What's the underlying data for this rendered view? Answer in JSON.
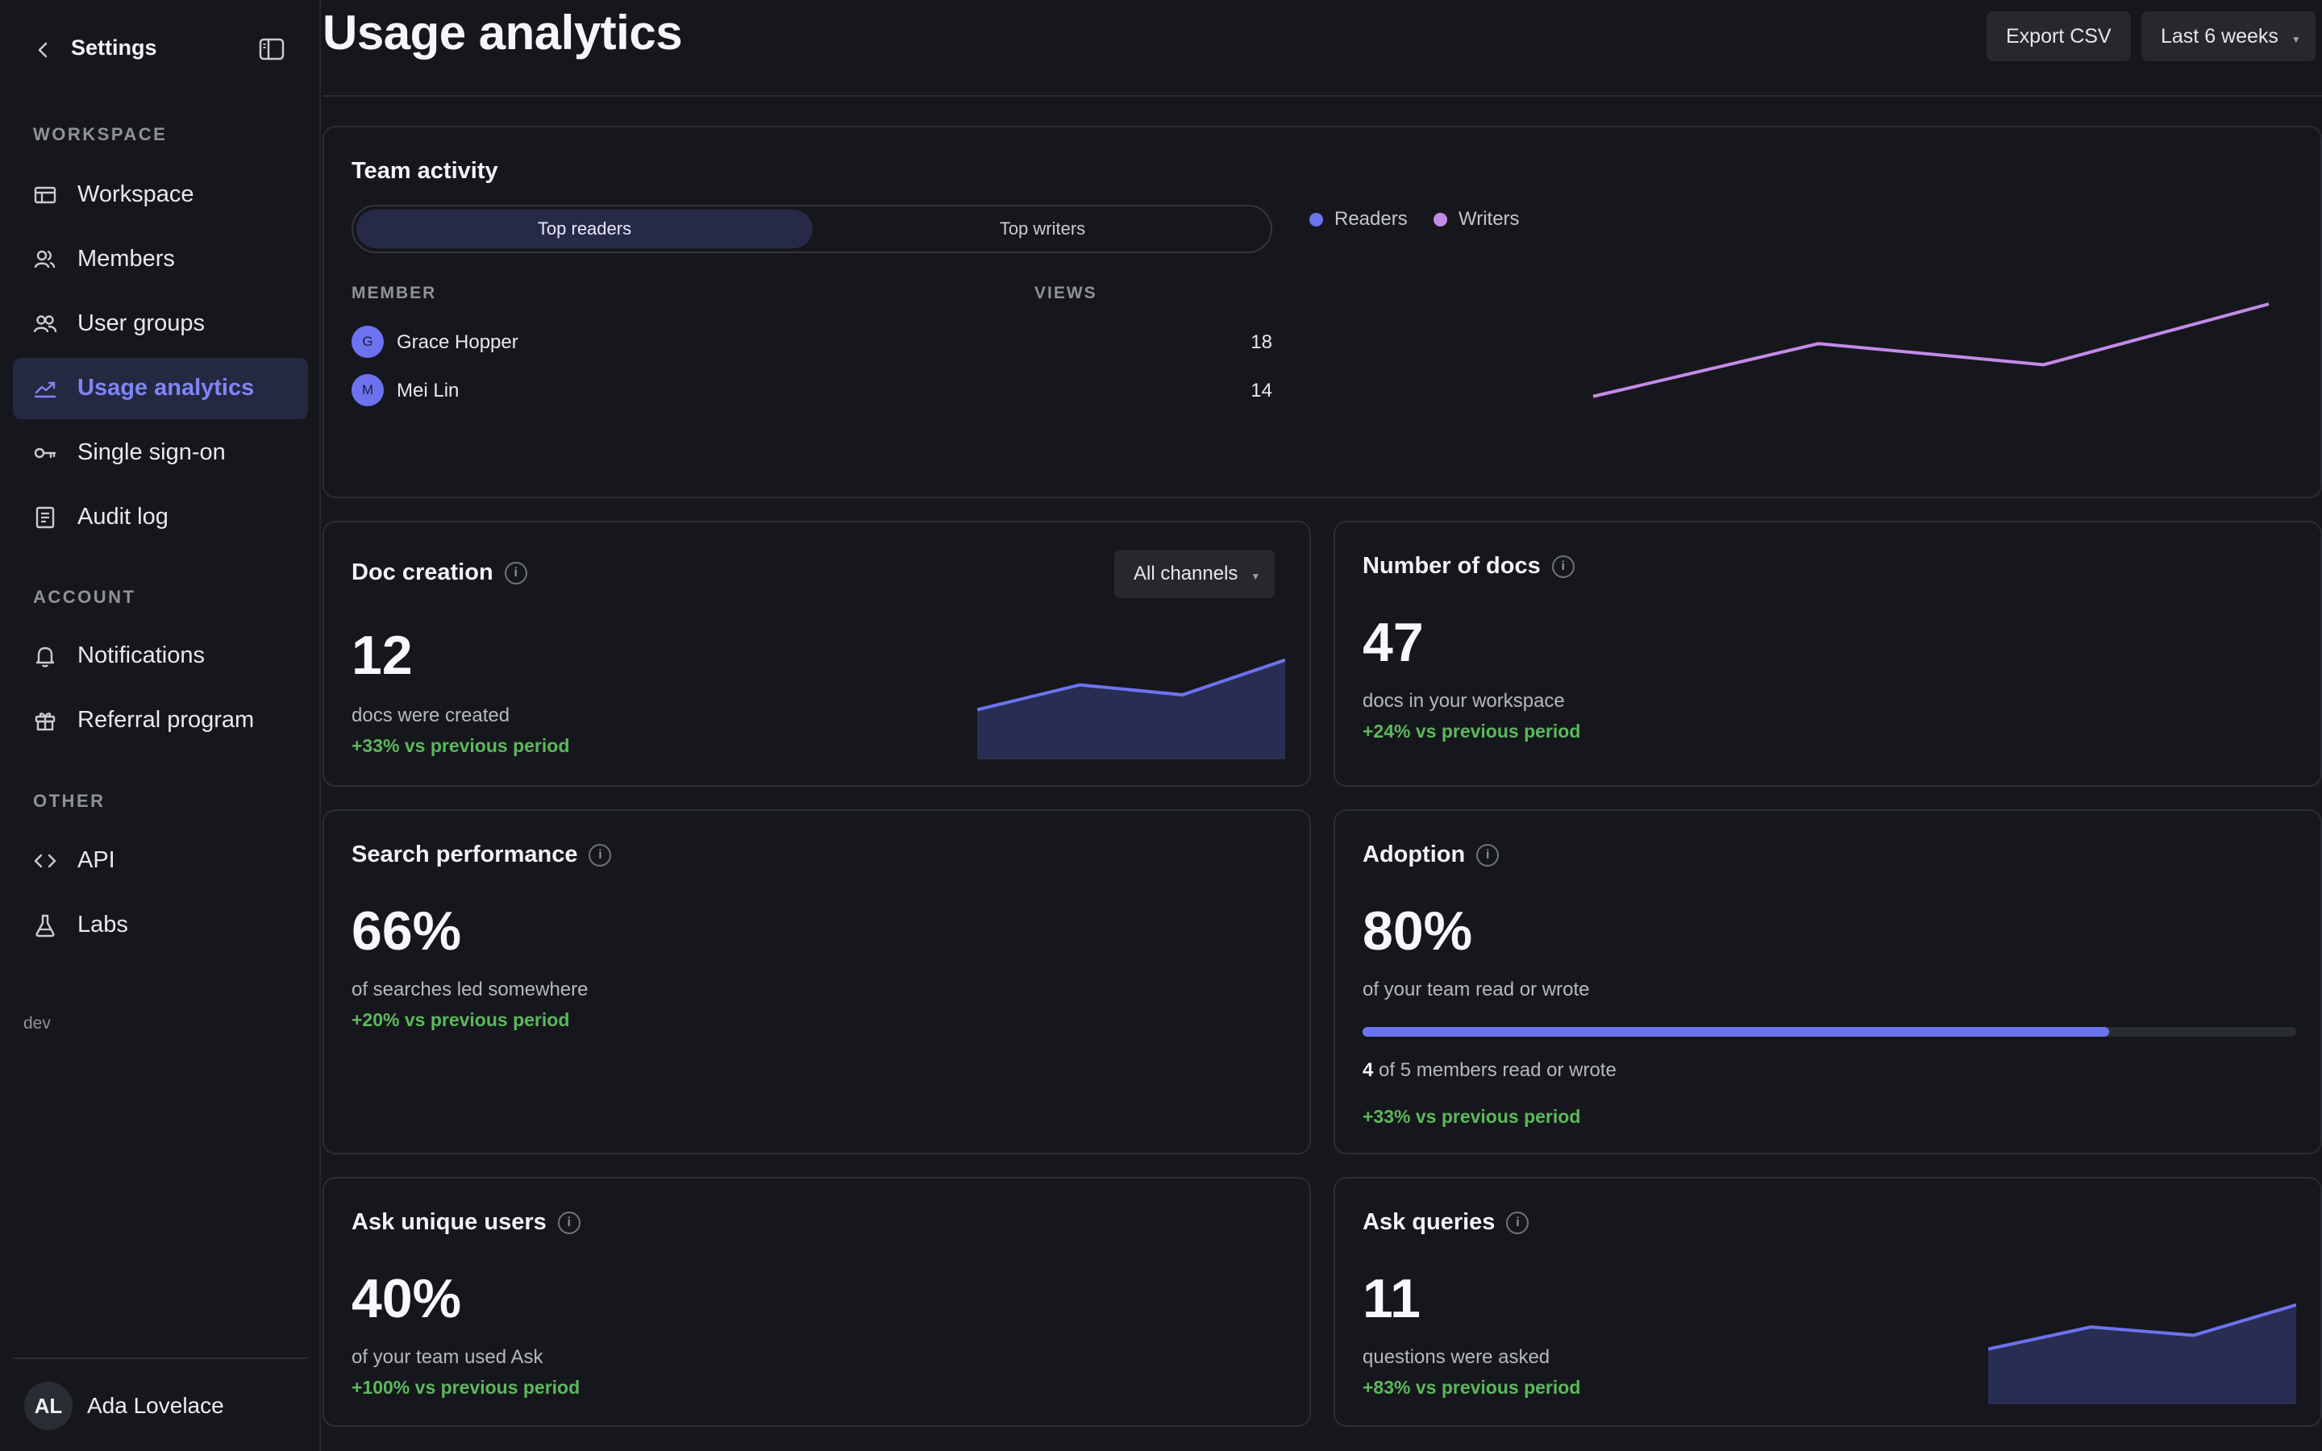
{
  "sidebar": {
    "title": "Settings",
    "sections": [
      {
        "label": "WORKSPACE"
      },
      {
        "label": "ACCOUNT"
      },
      {
        "label": "OTHER"
      }
    ],
    "items": [
      {
        "label": "Workspace",
        "icon": "workspace-icon"
      },
      {
        "label": "Members",
        "icon": "members-icon"
      },
      {
        "label": "User groups",
        "icon": "user-groups-icon"
      },
      {
        "label": "Usage analytics",
        "icon": "analytics-icon",
        "active": true
      },
      {
        "label": "Single sign-on",
        "icon": "key-icon"
      },
      {
        "label": "Audit log",
        "icon": "document-icon"
      },
      {
        "label": "Notifications",
        "icon": "bell-icon"
      },
      {
        "label": "Referral program",
        "icon": "gift-icon"
      },
      {
        "label": "API",
        "icon": "code-icon"
      },
      {
        "label": "Labs",
        "icon": "flask-icon"
      }
    ],
    "env": "dev",
    "user": {
      "initials": "AL",
      "name": "Ada Lovelace"
    }
  },
  "header": {
    "title": "Usage analytics",
    "export_label": "Export CSV",
    "range_label": "Last 6 weeks"
  },
  "colors": {
    "accent": "#6c73f0",
    "writers": "#c48ae8",
    "positive": "#5cb85c",
    "area": "#2a2d52"
  },
  "team_activity": {
    "title": "Team activity",
    "tabs": [
      "Top readers",
      "Top writers"
    ],
    "active_tab": "Top readers",
    "columns": [
      "MEMBER",
      "VIEWS"
    ],
    "rows": [
      {
        "initial": "G",
        "name": "Grace Hopper",
        "value": "18"
      },
      {
        "initial": "M",
        "name": "Mei Lin",
        "value": "14"
      }
    ],
    "legend": [
      "Readers",
      "Writers"
    ]
  },
  "doc_creation": {
    "title": "Doc creation",
    "filter": "All channels",
    "value": "12",
    "caption": "docs were created",
    "delta": "+33% vs previous period"
  },
  "num_docs": {
    "title": "Number of docs",
    "value": "47",
    "caption": "docs in your workspace",
    "delta": "+24% vs previous period"
  },
  "search": {
    "title": "Search performance",
    "value": "66%",
    "caption": "of searches led somewhere",
    "delta": "+20% vs previous period"
  },
  "adoption": {
    "title": "Adoption",
    "value": "80%",
    "caption": "of your team read or wrote",
    "progress": 0.8,
    "members_count": "4",
    "members_text": "of 5 members read or wrote",
    "delta": "+33% vs previous period"
  },
  "ask_users": {
    "title": "Ask unique users",
    "value": "40%",
    "caption": "of your team used Ask",
    "delta": "+100% vs previous period"
  },
  "ask_queries": {
    "title": "Ask queries",
    "value": "11",
    "caption": "questions were asked",
    "delta": "+83% vs previous period"
  },
  "chart_data": [
    {
      "type": "line",
      "name": "team-activity",
      "series": [
        {
          "name": "Writers",
          "values": [
            3,
            5,
            4.2,
            6.5
          ]
        },
        {
          "name": "Readers",
          "values": []
        }
      ],
      "ylim": [
        0,
        8
      ]
    },
    {
      "type": "area",
      "name": "doc-creation-spark",
      "values": [
        2,
        3,
        2.6,
        4
      ],
      "ylim": [
        0,
        5
      ]
    },
    {
      "type": "area",
      "name": "ask-queries-spark",
      "values": [
        2,
        2.8,
        2.5,
        3.6
      ],
      "ylim": [
        0,
        4.5
      ]
    }
  ]
}
